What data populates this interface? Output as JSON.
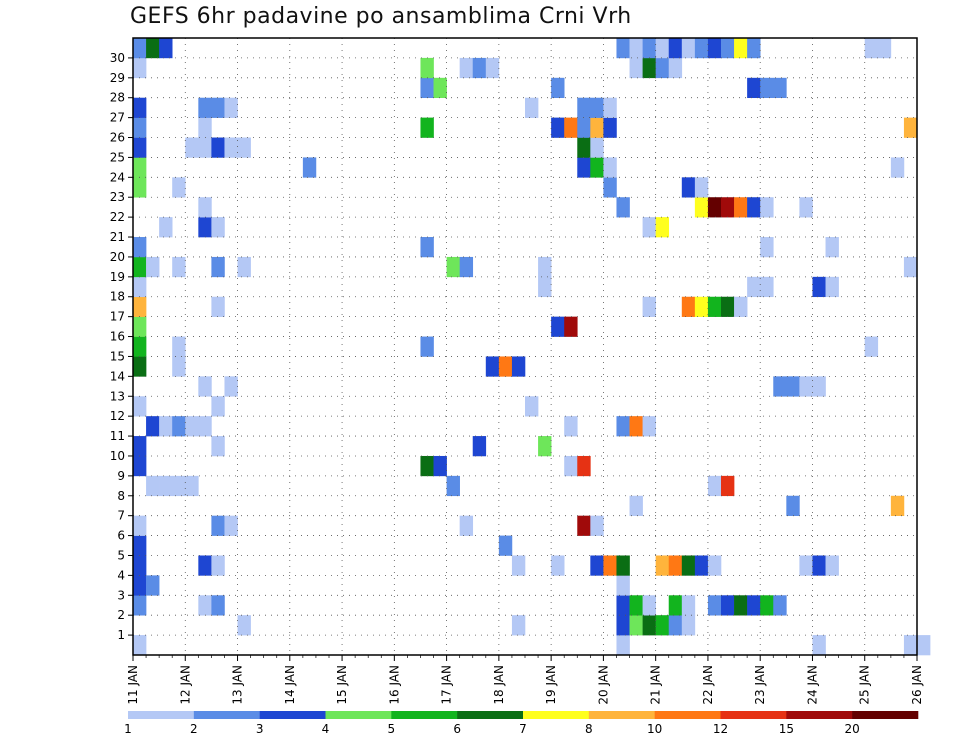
{
  "chart_data": {
    "type": "heatmap",
    "title": "GEFS 6hr padavine po ansamblima Crni Vrh",
    "xlabel": "",
    "ylabel": "",
    "x_ticks": [
      "11 JAN",
      "12 JAN",
      "13 JAN",
      "14 JAN",
      "15 JAN",
      "16 JAN",
      "17 JAN",
      "18 JAN",
      "19 JAN",
      "20 JAN",
      "21 JAN",
      "22 JAN",
      "23 JAN",
      "24 JAN",
      "25 JAN",
      "26 JAN"
    ],
    "y_ticks": [
      "1",
      "2",
      "3",
      "4",
      "5",
      "6",
      "7",
      "8",
      "9",
      "10",
      "11",
      "12",
      "13",
      "14",
      "15",
      "16",
      "17",
      "18",
      "19",
      "20",
      "21",
      "22",
      "23",
      "24",
      "25",
      "26",
      "27",
      "28",
      "29",
      "30"
    ],
    "members_range": [
      0,
      30
    ],
    "steps_per_day": 4,
    "days": 15,
    "grid": true,
    "legend_placement": "bottom",
    "legend_levels": [
      "1",
      "2",
      "3",
      "4",
      "5",
      "6",
      "7",
      "8",
      "10",
      "12",
      "15",
      "20"
    ],
    "legend_colors": [
      "#b4c8f5",
      "#5a8ce6",
      "#1e46d2",
      "#6ee65a",
      "#12b41e",
      "#0a6e14",
      "#ffff1e",
      "#ffb43c",
      "#ff7814",
      "#e63214",
      "#a00a0a",
      "#640000"
    ],
    "cells": [
      {
        "m": 0,
        "t": [
          [
            0,
            1
          ],
          [
            37,
            1
          ],
          [
            52,
            1
          ],
          [
            59,
            1
          ],
          [
            60,
            1
          ]
        ]
      },
      {
        "m": 1,
        "t": [
          [
            8,
            1
          ],
          [
            29,
            1
          ],
          [
            37,
            3
          ],
          [
            38,
            4
          ],
          [
            39,
            6
          ],
          [
            40,
            5
          ],
          [
            41,
            2
          ],
          [
            42,
            1
          ]
        ]
      },
      {
        "m": 2,
        "t": [
          [
            0,
            2
          ],
          [
            5,
            1
          ],
          [
            6,
            2
          ],
          [
            37,
            3
          ],
          [
            38,
            5
          ],
          [
            39,
            1
          ],
          [
            41,
            5
          ],
          [
            42,
            1
          ],
          [
            44,
            2
          ],
          [
            45,
            3
          ],
          [
            46,
            6
          ],
          [
            47,
            3
          ],
          [
            48,
            5
          ],
          [
            49,
            2
          ]
        ]
      },
      {
        "m": 3,
        "t": [
          [
            0,
            3
          ],
          [
            1,
            2
          ],
          [
            37,
            1
          ]
        ]
      },
      {
        "m": 4,
        "t": [
          [
            0,
            3
          ],
          [
            5,
            3
          ],
          [
            6,
            1
          ],
          [
            29,
            1
          ],
          [
            32,
            1
          ],
          [
            35,
            3
          ],
          [
            36,
            9
          ],
          [
            37,
            6
          ],
          [
            40,
            8
          ],
          [
            41,
            9
          ],
          [
            42,
            6
          ],
          [
            43,
            3
          ],
          [
            44,
            1
          ],
          [
            51,
            1
          ],
          [
            52,
            3
          ],
          [
            53,
            1
          ]
        ]
      },
      {
        "m": 5,
        "t": [
          [
            0,
            3
          ],
          [
            28,
            2
          ]
        ]
      },
      {
        "m": 6,
        "t": [
          [
            0,
            1
          ],
          [
            6,
            2
          ],
          [
            7,
            1
          ],
          [
            25,
            1
          ],
          [
            34,
            11
          ],
          [
            35,
            1
          ]
        ]
      },
      {
        "m": 7,
        "t": [
          [
            38,
            1
          ],
          [
            50,
            2
          ],
          [
            58,
            8
          ]
        ]
      },
      {
        "m": 8,
        "t": [
          [
            1,
            1
          ],
          [
            2,
            1
          ],
          [
            3,
            1
          ],
          [
            4,
            1
          ],
          [
            24,
            2
          ],
          [
            44,
            1
          ],
          [
            45,
            10
          ]
        ]
      },
      {
        "m": 9,
        "t": [
          [
            0,
            3
          ],
          [
            22,
            6
          ],
          [
            23,
            3
          ],
          [
            33,
            1
          ],
          [
            34,
            10
          ]
        ]
      },
      {
        "m": 10,
        "t": [
          [
            0,
            3
          ],
          [
            6,
            1
          ],
          [
            26,
            3
          ],
          [
            31,
            4
          ]
        ]
      },
      {
        "m": 11,
        "t": [
          [
            1,
            3
          ],
          [
            2,
            1
          ],
          [
            3,
            2
          ],
          [
            4,
            1
          ],
          [
            5,
            1
          ],
          [
            33,
            1
          ],
          [
            37,
            2
          ],
          [
            38,
            9
          ],
          [
            39,
            1
          ]
        ]
      },
      {
        "m": 12,
        "t": [
          [
            0,
            1
          ],
          [
            6,
            1
          ],
          [
            30,
            1
          ]
        ]
      },
      {
        "m": 13,
        "t": [
          [
            5,
            1
          ],
          [
            7,
            1
          ],
          [
            49,
            2
          ],
          [
            50,
            2
          ],
          [
            51,
            1
          ],
          [
            52,
            1
          ]
        ]
      },
      {
        "m": 14,
        "t": [
          [
            0,
            6
          ],
          [
            3,
            1
          ],
          [
            27,
            3
          ],
          [
            28,
            9
          ],
          [
            29,
            3
          ]
        ]
      },
      {
        "m": 15,
        "t": [
          [
            0,
            5
          ],
          [
            3,
            1
          ],
          [
            22,
            2
          ],
          [
            56,
            1
          ]
        ]
      },
      {
        "m": 16,
        "t": [
          [
            0,
            4
          ],
          [
            32,
            3
          ],
          [
            33,
            11
          ]
        ]
      },
      {
        "m": 17,
        "t": [
          [
            0,
            8
          ],
          [
            6,
            1
          ],
          [
            39,
            1
          ],
          [
            42,
            9
          ],
          [
            43,
            7
          ],
          [
            44,
            5
          ],
          [
            45,
            6
          ],
          [
            46,
            1
          ]
        ]
      },
      {
        "m": 18,
        "t": [
          [
            0,
            1
          ],
          [
            31,
            1
          ],
          [
            47,
            1
          ],
          [
            48,
            1
          ],
          [
            52,
            3
          ],
          [
            53,
            1
          ]
        ]
      },
      {
        "m": 19,
        "t": [
          [
            0,
            5
          ],
          [
            1,
            1
          ],
          [
            3,
            1
          ],
          [
            6,
            2
          ],
          [
            8,
            1
          ],
          [
            24,
            4
          ],
          [
            25,
            2
          ],
          [
            31,
            1
          ],
          [
            59,
            1
          ]
        ]
      },
      {
        "m": 20,
        "t": [
          [
            0,
            2
          ],
          [
            22,
            2
          ],
          [
            48,
            1
          ],
          [
            53,
            1
          ]
        ]
      },
      {
        "m": 21,
        "t": [
          [
            2,
            1
          ],
          [
            5,
            3
          ],
          [
            6,
            1
          ],
          [
            39,
            1
          ],
          [
            40,
            7
          ]
        ]
      },
      {
        "m": 22,
        "t": [
          [
            5,
            1
          ],
          [
            37,
            2
          ],
          [
            43,
            7
          ],
          [
            44,
            12
          ],
          [
            45,
            11
          ],
          [
            46,
            9
          ],
          [
            47,
            3
          ],
          [
            48,
            1
          ],
          [
            51,
            1
          ]
        ]
      },
      {
        "m": 23,
        "t": [
          [
            0,
            4
          ],
          [
            3,
            1
          ],
          [
            36,
            2
          ],
          [
            42,
            3
          ],
          [
            43,
            1
          ]
        ]
      },
      {
        "m": 24,
        "t": [
          [
            0,
            4
          ],
          [
            13,
            2
          ],
          [
            34,
            3
          ],
          [
            35,
            5
          ],
          [
            36,
            1
          ],
          [
            58,
            1
          ]
        ]
      },
      {
        "m": 25,
        "t": [
          [
            0,
            3
          ],
          [
            4,
            1
          ],
          [
            5,
            1
          ],
          [
            6,
            3
          ],
          [
            7,
            1
          ],
          [
            8,
            1
          ],
          [
            34,
            6
          ],
          [
            35,
            1
          ]
        ]
      },
      {
        "m": 26,
        "t": [
          [
            0,
            2
          ],
          [
            5,
            1
          ],
          [
            22,
            5
          ],
          [
            32,
            3
          ],
          [
            33,
            9
          ],
          [
            34,
            2
          ],
          [
            35,
            8
          ],
          [
            36,
            3
          ],
          [
            59,
            8
          ]
        ]
      },
      {
        "m": 27,
        "t": [
          [
            0,
            3
          ],
          [
            5,
            2
          ],
          [
            6,
            2
          ],
          [
            7,
            1
          ],
          [
            30,
            1
          ],
          [
            34,
            2
          ],
          [
            35,
            2
          ],
          [
            36,
            1
          ]
        ]
      },
      {
        "m": 28,
        "t": [
          [
            22,
            2
          ],
          [
            23,
            4
          ],
          [
            32,
            2
          ],
          [
            47,
            3
          ],
          [
            48,
            2
          ],
          [
            49,
            2
          ]
        ]
      },
      {
        "m": 29,
        "t": [
          [
            0,
            1
          ],
          [
            22,
            4
          ],
          [
            25,
            1
          ],
          [
            26,
            2
          ],
          [
            27,
            1
          ],
          [
            38,
            1
          ],
          [
            39,
            6
          ],
          [
            40,
            2
          ],
          [
            41,
            1
          ]
        ]
      },
      {
        "m": 30,
        "t": [
          [
            0,
            2
          ],
          [
            1,
            6
          ],
          [
            2,
            3
          ],
          [
            37,
            2
          ],
          [
            38,
            1
          ],
          [
            39,
            2
          ],
          [
            40,
            1
          ],
          [
            41,
            3
          ],
          [
            42,
            1
          ],
          [
            43,
            2
          ],
          [
            44,
            3
          ],
          [
            45,
            2
          ],
          [
            46,
            7
          ],
          [
            47,
            2
          ],
          [
            56,
            1
          ],
          [
            57,
            1
          ]
        ]
      }
    ]
  }
}
